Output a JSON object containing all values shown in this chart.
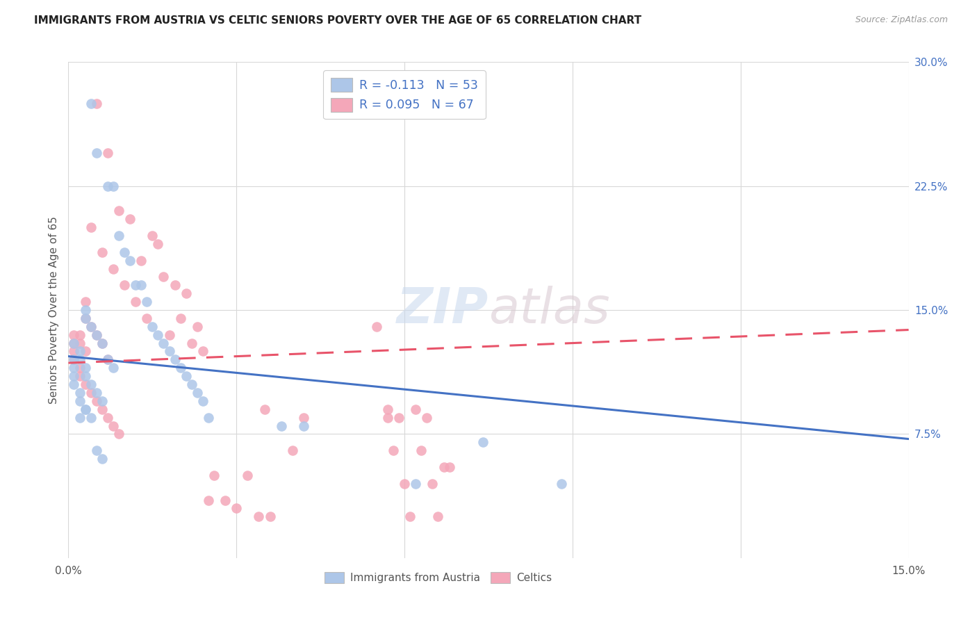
{
  "title": "IMMIGRANTS FROM AUSTRIA VS CELTIC SENIORS POVERTY OVER THE AGE OF 65 CORRELATION CHART",
  "source": "Source: ZipAtlas.com",
  "ylabel": "Seniors Poverty Over the Age of 65",
  "xlim": [
    0.0,
    0.15
  ],
  "ylim": [
    0.0,
    0.3
  ],
  "xtick_positions": [
    0.0,
    0.03,
    0.06,
    0.09,
    0.12,
    0.15
  ],
  "xtick_labels": [
    "0.0%",
    "",
    "",
    "",
    "",
    "15.0%"
  ],
  "ytick_positions_right": [
    0.075,
    0.15,
    0.225,
    0.3
  ],
  "ytick_labels_right": [
    "7.5%",
    "15.0%",
    "22.5%",
    "30.0%"
  ],
  "legend_austria_label": "R = -0.113   N = 53",
  "legend_celtics_label": "R = 0.095   N = 67",
  "legend_bottom_austria": "Immigrants from Austria",
  "legend_bottom_celtics": "Celtics",
  "austria_color": "#adc6e8",
  "celtics_color": "#f4a7b9",
  "austria_line_color": "#4472c4",
  "celtics_line_color": "#e8546a",
  "watermark": "ZIPatlas",
  "austria_trend_x": [
    0.0,
    0.15
  ],
  "austria_trend_y": [
    0.122,
    0.072
  ],
  "celtics_trend_x": [
    0.0,
    0.15
  ],
  "celtics_trend_y": [
    0.118,
    0.138
  ],
  "austria_x": [
    0.004,
    0.005,
    0.007,
    0.008,
    0.009,
    0.01,
    0.011,
    0.012,
    0.013,
    0.014,
    0.015,
    0.016,
    0.017,
    0.018,
    0.019,
    0.02,
    0.021,
    0.022,
    0.023,
    0.024,
    0.025,
    0.003,
    0.003,
    0.004,
    0.005,
    0.006,
    0.007,
    0.008,
    0.002,
    0.002,
    0.003,
    0.003,
    0.004,
    0.005,
    0.006,
    0.003,
    0.002,
    0.001,
    0.001,
    0.001,
    0.001,
    0.001,
    0.002,
    0.002,
    0.003,
    0.004,
    0.005,
    0.006,
    0.062,
    0.074,
    0.088,
    0.038,
    0.042
  ],
  "austria_y": [
    0.275,
    0.245,
    0.225,
    0.225,
    0.195,
    0.185,
    0.18,
    0.165,
    0.165,
    0.155,
    0.14,
    0.135,
    0.13,
    0.125,
    0.12,
    0.115,
    0.11,
    0.105,
    0.1,
    0.095,
    0.085,
    0.15,
    0.145,
    0.14,
    0.135,
    0.13,
    0.12,
    0.115,
    0.125,
    0.12,
    0.115,
    0.11,
    0.105,
    0.1,
    0.095,
    0.09,
    0.085,
    0.13,
    0.12,
    0.115,
    0.11,
    0.105,
    0.1,
    0.095,
    0.09,
    0.085,
    0.065,
    0.06,
    0.045,
    0.07,
    0.045,
    0.08,
    0.08
  ],
  "celtics_x": [
    0.005,
    0.007,
    0.009,
    0.011,
    0.013,
    0.015,
    0.017,
    0.019,
    0.021,
    0.023,
    0.004,
    0.006,
    0.008,
    0.01,
    0.012,
    0.014,
    0.016,
    0.018,
    0.02,
    0.022,
    0.024,
    0.003,
    0.003,
    0.004,
    0.005,
    0.006,
    0.007,
    0.002,
    0.002,
    0.003,
    0.001,
    0.001,
    0.001,
    0.001,
    0.002,
    0.002,
    0.003,
    0.004,
    0.005,
    0.006,
    0.007,
    0.008,
    0.009,
    0.035,
    0.036,
    0.04,
    0.042,
    0.055,
    0.057,
    0.025,
    0.026,
    0.028,
    0.03,
    0.032,
    0.034,
    0.057,
    0.058,
    0.059,
    0.06,
    0.061,
    0.062,
    0.063,
    0.064,
    0.065,
    0.066,
    0.067,
    0.068
  ],
  "celtics_y": [
    0.275,
    0.245,
    0.21,
    0.205,
    0.18,
    0.195,
    0.17,
    0.165,
    0.16,
    0.14,
    0.2,
    0.185,
    0.175,
    0.165,
    0.155,
    0.145,
    0.19,
    0.135,
    0.145,
    0.13,
    0.125,
    0.155,
    0.145,
    0.14,
    0.135,
    0.13,
    0.12,
    0.135,
    0.13,
    0.125,
    0.135,
    0.13,
    0.125,
    0.12,
    0.115,
    0.11,
    0.105,
    0.1,
    0.095,
    0.09,
    0.085,
    0.08,
    0.075,
    0.09,
    0.025,
    0.065,
    0.085,
    0.14,
    0.085,
    0.035,
    0.05,
    0.035,
    0.03,
    0.05,
    0.025,
    0.09,
    0.065,
    0.085,
    0.045,
    0.025,
    0.09,
    0.065,
    0.085,
    0.045,
    0.025,
    0.055,
    0.055
  ]
}
